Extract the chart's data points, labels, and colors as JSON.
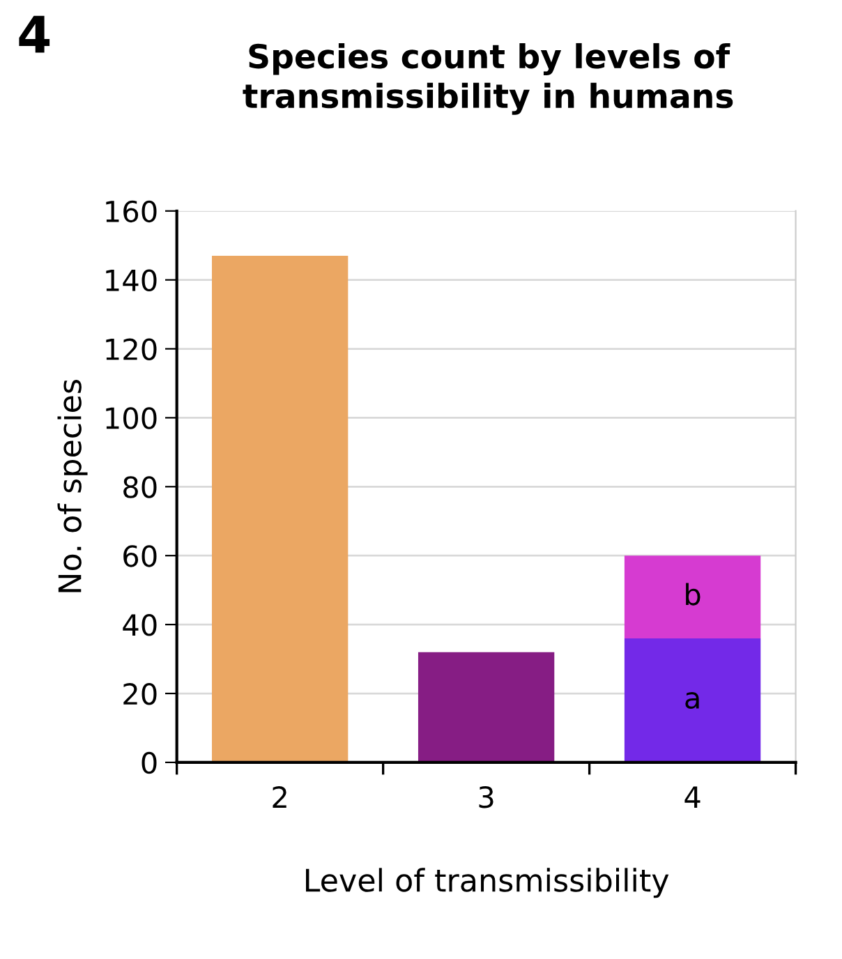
{
  "chart_data": {
    "type": "bar",
    "title": "Species count by levels of\ntransmissibility in humans",
    "xlabel": "Level of transmissibility",
    "ylabel": "No. of species",
    "categories": [
      "2",
      "3",
      "4"
    ],
    "stacked": true,
    "series": [
      {
        "colors": [
          "#eba763",
          "#861d84",
          null
        ],
        "values": [
          147,
          32,
          null
        ]
      },
      {
        "name": "a",
        "color": "#7329e8",
        "values": [
          null,
          null,
          36
        ]
      },
      {
        "name": "b",
        "color": "#d63bd1",
        "values": [
          null,
          null,
          24
        ]
      }
    ],
    "annotations": [
      "4"
    ],
    "ylim": [
      0,
      160
    ],
    "yticks": [
      0,
      20,
      40,
      60,
      80,
      100,
      120,
      140,
      160
    ],
    "grid": "y"
  }
}
